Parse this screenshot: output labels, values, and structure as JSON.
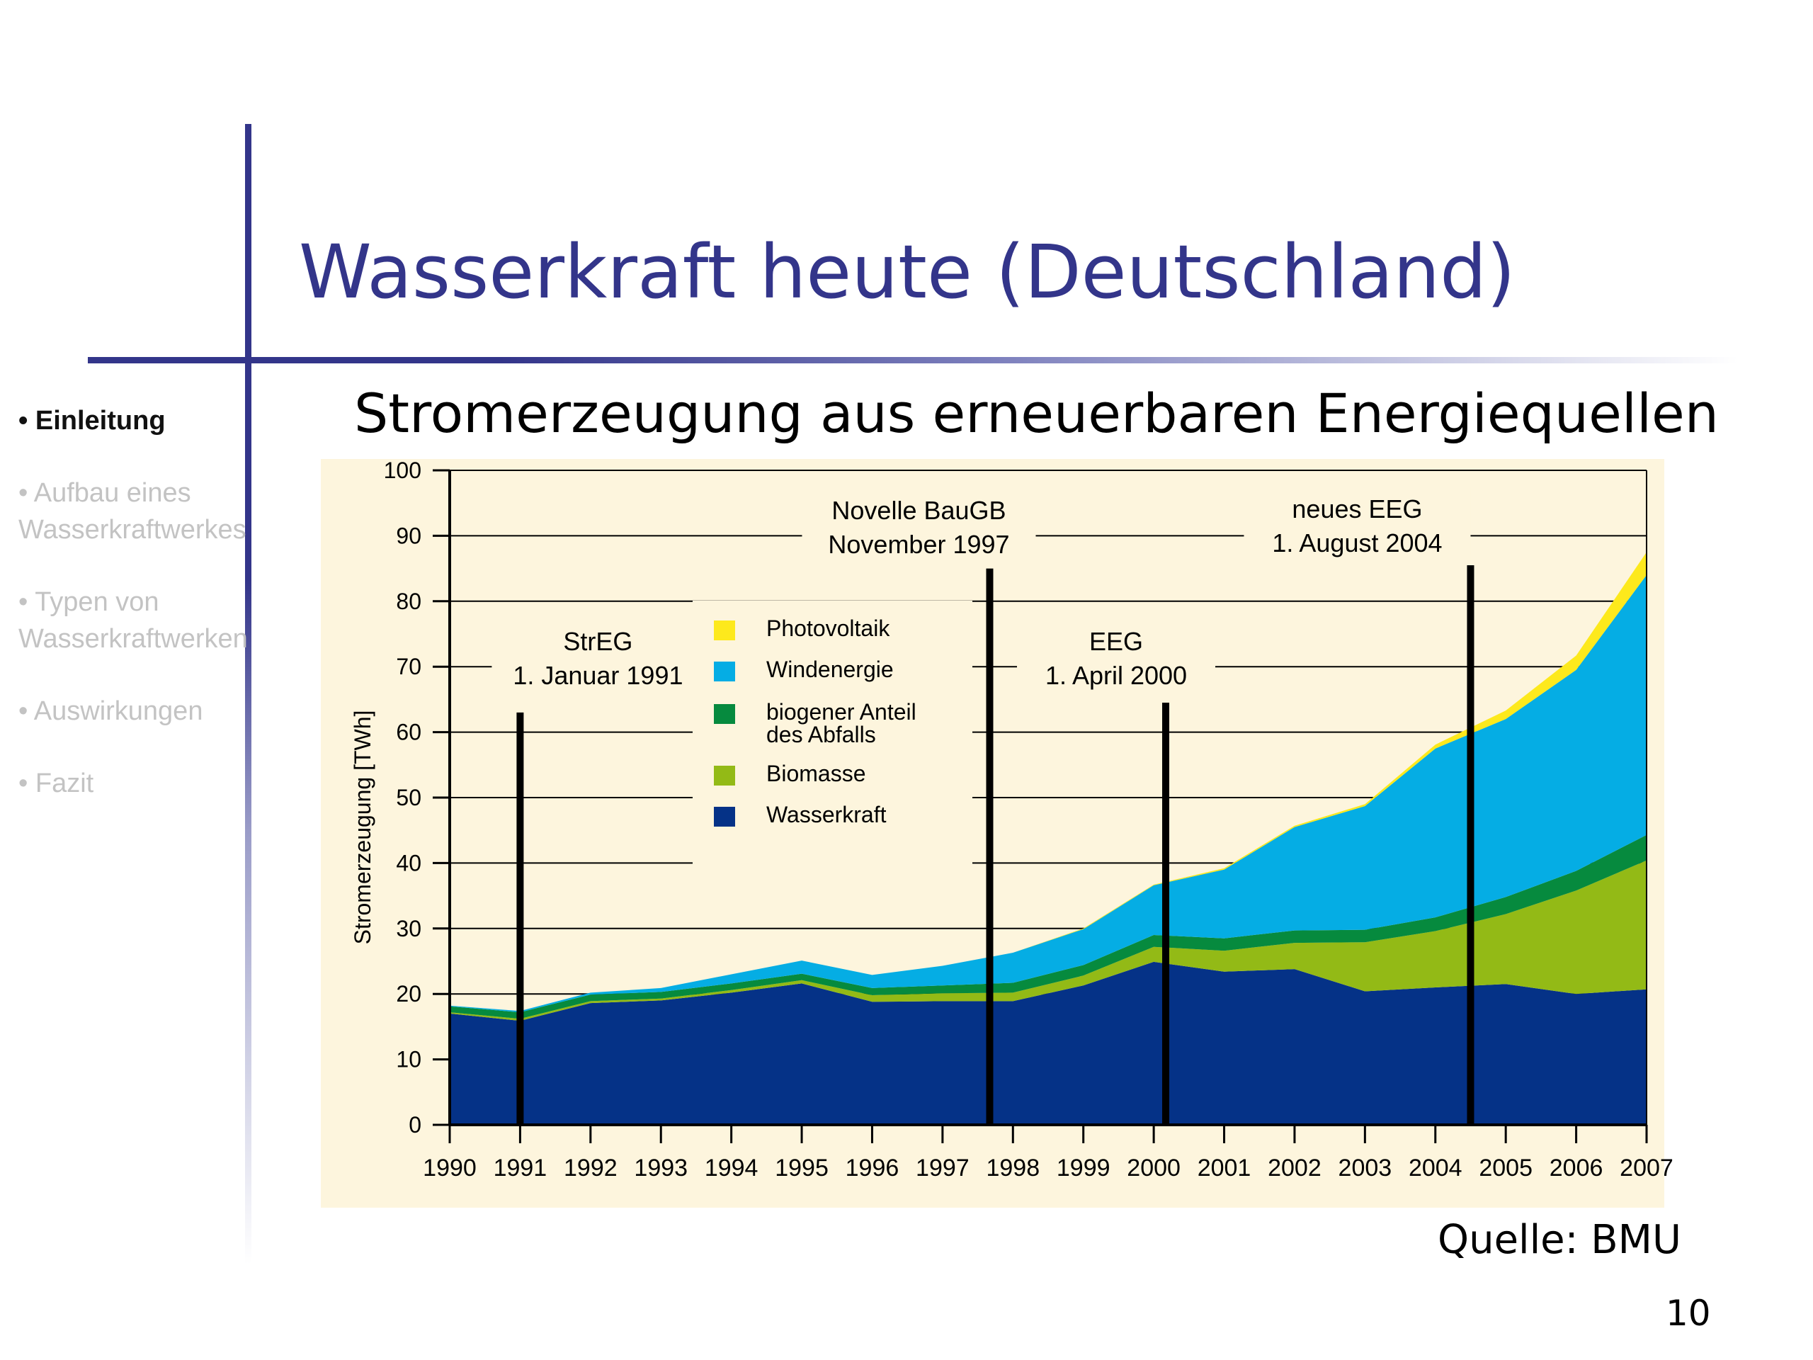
{
  "slide": {
    "title": "Wasserkraft heute (Deutschland)",
    "source": "Quelle: BMU",
    "page_number": "10"
  },
  "nav": [
    {
      "bullet": "•",
      "label": "Einleitung",
      "active": true
    },
    {
      "bullet": "•",
      "label": "Aufbau  eines\nWasserkraftwerkes",
      "active": false
    },
    {
      "bullet": "•",
      "label": "Typen von\nWasserkraftwerken",
      "active": false
    },
    {
      "bullet": "•",
      "label": "Auswirkungen",
      "active": false
    },
    {
      "bullet": "•",
      "label": "  Fazit",
      "active": false
    }
  ],
  "colors": {
    "title": "#33358a",
    "chart_background": "#fdf5dd",
    "Wasserkraft": "#053287",
    "Biomasse": "#93ba16",
    "biogener Anteil des Abfalls": "#068a3e",
    "Windenergie": "#05ade4",
    "Photovoltaik": "#fde91c"
  },
  "chart_data": {
    "type": "area",
    "stacked": true,
    "title": "Stromerzeugung aus erneuerbaren Energiequellen",
    "ylabel": "Stromerzeugung [TWh]",
    "xlabel": "",
    "ylim": [
      0,
      100
    ],
    "yticks": [
      0,
      10,
      20,
      30,
      40,
      50,
      60,
      70,
      80,
      90,
      100
    ],
    "x": [
      "1990",
      "1991",
      "1992",
      "1993",
      "1994",
      "1995",
      "1996",
      "1997",
      "1998",
      "1999",
      "2000",
      "2001",
      "2002",
      "2003",
      "2004",
      "2005",
      "2006",
      "2007"
    ],
    "grid": "horizontal",
    "series": [
      {
        "name": "Wasserkraft",
        "values": [
          17.0,
          15.9,
          18.6,
          19.0,
          20.2,
          21.6,
          18.8,
          18.9,
          18.9,
          21.3,
          24.9,
          23.4,
          23.8,
          20.4,
          21.0,
          21.5,
          20.0,
          20.7
        ]
      },
      {
        "name": "Biomasse",
        "values": [
          0.2,
          0.3,
          0.3,
          0.3,
          0.4,
          0.5,
          1.0,
          1.2,
          1.3,
          1.5,
          2.3,
          3.2,
          4.0,
          7.5,
          8.6,
          10.7,
          15.8,
          19.7
        ]
      },
      {
        "name": "biogener Anteil des Abfalls",
        "values": [
          0.9,
          1.0,
          1.0,
          1.0,
          1.0,
          1.0,
          1.1,
          1.2,
          1.5,
          1.6,
          1.8,
          1.9,
          1.9,
          1.9,
          2.1,
          2.6,
          3.0,
          3.9
        ]
      },
      {
        "name": "Windenergie",
        "values": [
          0.1,
          0.2,
          0.3,
          0.6,
          1.4,
          2.0,
          2.0,
          3.0,
          4.6,
          5.5,
          7.6,
          10.5,
          15.8,
          18.9,
          25.8,
          27.2,
          30.7,
          39.7
        ]
      },
      {
        "name": "Photovoltaik",
        "values": [
          0.0,
          0.0,
          0.0,
          0.0,
          0.0,
          0.0,
          0.0,
          0.0,
          0.0,
          0.1,
          0.1,
          0.2,
          0.2,
          0.3,
          0.6,
          1.3,
          2.2,
          3.5
        ]
      }
    ],
    "legend": {
      "position": "top-center",
      "order": [
        "Photovoltaik",
        "Windenergie",
        "biogener Anteil des Abfalls",
        "Biomasse",
        "Wasserkraft"
      ],
      "labels": [
        "Photovoltaik",
        "Windenergie",
        "biogener Anteil\ndes Abfalls",
        "Biomasse",
        "Wasserkraft"
      ]
    },
    "annotations": [
      {
        "text": [
          "StrEG",
          "1. Januar 1991"
        ],
        "x": 1991.0,
        "y_top": 63
      },
      {
        "text": [
          "Novelle BauGB",
          "November 1997"
        ],
        "x": 1997.67,
        "y_top": 85
      },
      {
        "text": [
          "EEG",
          "1. April 2000"
        ],
        "x": 2000.17,
        "y_top": 64.5
      },
      {
        "text": [
          "neues EEG",
          "1. August  2004"
        ],
        "x": 2004.5,
        "y_top": 85.5
      }
    ]
  }
}
